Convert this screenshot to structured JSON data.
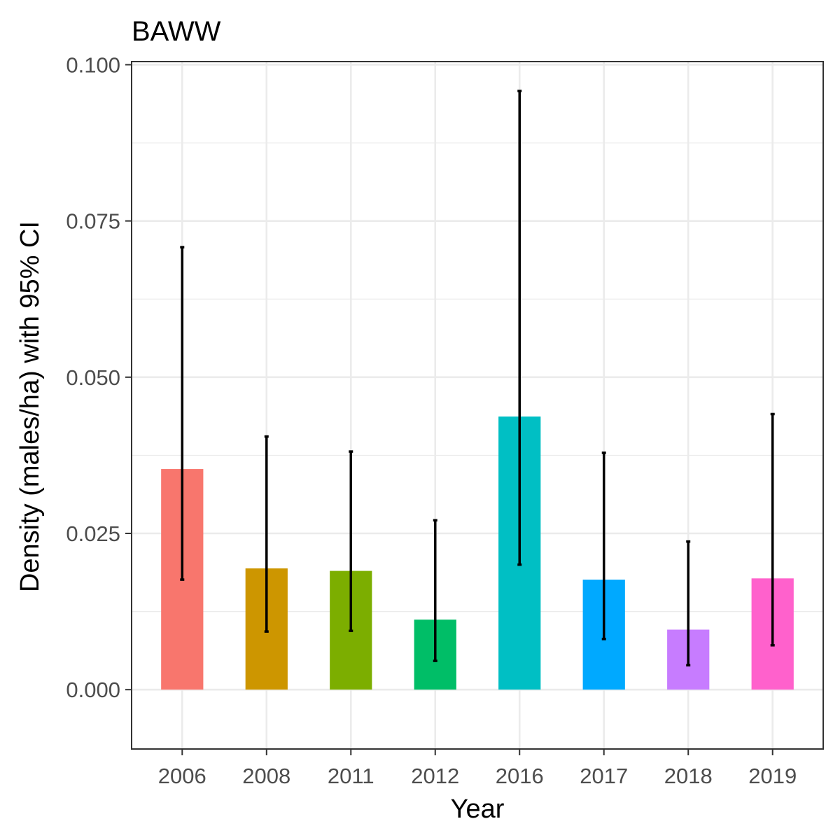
{
  "chart_data": {
    "type": "bar",
    "title": "BAWW",
    "xlabel": "Year",
    "ylabel": "Density (males/ha) with 95% CI",
    "categories": [
      "2006",
      "2008",
      "2011",
      "2012",
      "2016",
      "2017",
      "2018",
      "2019"
    ],
    "values": [
      0.0353,
      0.0194,
      0.019,
      0.0112,
      0.0437,
      0.0176,
      0.0096,
      0.0178
    ],
    "ci_lower": [
      0.0176,
      0.0093,
      0.0094,
      0.0046,
      0.02,
      0.0081,
      0.0039,
      0.0071
    ],
    "ci_upper": [
      0.0708,
      0.0405,
      0.0381,
      0.0271,
      0.0958,
      0.0379,
      0.0237,
      0.0441
    ],
    "colors": [
      "#F8766D",
      "#CD9600",
      "#7CAE00",
      "#00BE67",
      "#00BFC4",
      "#00A9FF",
      "#C77CFF",
      "#FF61CC"
    ],
    "ylim": [
      -0.0095,
      0.1005
    ],
    "yticks": [
      "0.000",
      "0.025",
      "0.050",
      "0.075",
      "0.100"
    ],
    "grid": true,
    "legend": "none"
  }
}
